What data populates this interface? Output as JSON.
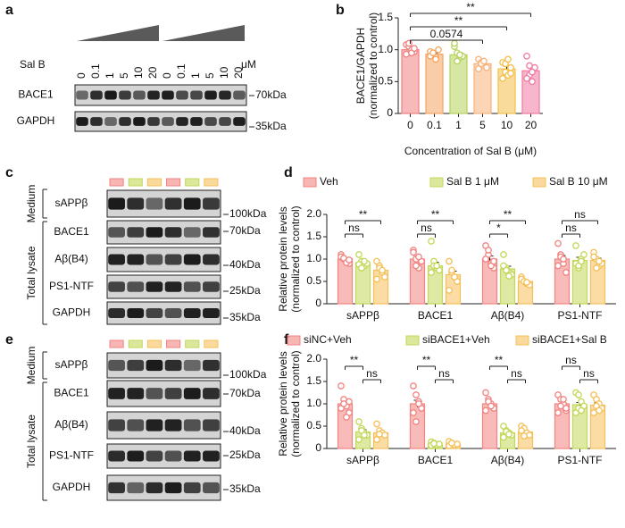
{
  "blots": [
    {
      "panel": "a",
      "treatment": "Sal B",
      "doses": [
        "0",
        "0.1",
        "1",
        "5",
        "10",
        "20",
        "0",
        "0.1",
        "1",
        "5",
        "10",
        "20"
      ],
      "dose_unit": "μM",
      "rows": [
        {
          "label": "BACE1",
          "marker": "70kDa"
        },
        {
          "label": "GAPDH",
          "marker": "35kDa"
        }
      ]
    },
    {
      "panel": "c",
      "fractions": [
        {
          "label": "Medium",
          "proteins": [
            {
              "label": "sAPPβ",
              "marker": "100kDa"
            }
          ]
        },
        {
          "label": "Total lysate",
          "proteins": [
            {
              "label": "BACE1",
              "marker": "70kDa"
            },
            {
              "label": "Aβ(B4)",
              "marker": "40kDa"
            },
            {
              "label": "PS1-NTF",
              "marker": "25kDa"
            },
            {
              "label": "GAPDH",
              "marker": "35kDa"
            }
          ]
        }
      ]
    },
    {
      "panel": "e",
      "fractions": [
        {
          "label": "Medium",
          "proteins": [
            {
              "label": "sAPPβ",
              "marker": "100kDa"
            }
          ]
        },
        {
          "label": "Total lysate",
          "proteins": [
            {
              "label": "BACE1",
              "marker": "70kDa"
            },
            {
              "label": "Aβ(B4)",
              "marker": "40kDa"
            },
            {
              "label": "PS1-NTF",
              "marker": "25kDa"
            },
            {
              "label": "GAPDH",
              "marker": "35kDa"
            }
          ]
        }
      ]
    }
  ],
  "chart_data": [
    {
      "panel": "b",
      "type": "bar",
      "ylabel": [
        "BACE1/GAPDH",
        "(normalized to control)"
      ],
      "xlabel": "Concentration of Sal B (μM)",
      "categories": [
        "0",
        "0.1",
        "1",
        "5",
        "10",
        "20"
      ],
      "values": [
        1.0,
        0.93,
        0.92,
        0.78,
        0.7,
        0.67
      ],
      "errors": [
        0.02,
        0.02,
        0.04,
        0.02,
        0.04,
        0.05
      ],
      "points": [
        [
          1.08,
          1.05,
          1.0,
          0.97,
          0.93,
          1.1,
          0.95,
          1.02
        ],
        [
          0.97,
          0.92,
          0.88,
          1.0,
          0.9,
          0.95,
          0.85
        ],
        [
          1.05,
          0.95,
          0.88,
          0.9,
          1.1,
          0.82,
          0.92
        ],
        [
          0.85,
          0.8,
          0.75,
          0.72,
          0.7,
          0.78,
          0.82
        ],
        [
          0.8,
          0.65,
          0.6,
          0.72,
          0.55,
          0.78,
          0.85,
          0.63
        ],
        [
          0.9,
          0.6,
          0.5,
          0.72,
          0.55,
          0.75,
          0.65
        ]
      ],
      "colors": [
        "#f08080",
        "#f4a460",
        "#b5d35a",
        "#f7b27a",
        "#f4c04a",
        "#f07aa0"
      ],
      "ylim": [
        0,
        1.5
      ],
      "yticks": [
        0,
        0.5,
        {
          "value": 1,
          "label": "1.0"
        },
        1.5
      ],
      "brackets": [
        {
          "label": "**",
          "between": [
            0,
            5
          ]
        },
        {
          "label": "**",
          "between": [
            0,
            4
          ]
        },
        {
          "label": "0.0574",
          "between": [
            0,
            3
          ]
        }
      ]
    },
    {
      "panel": "d",
      "type": "grouped_bar",
      "ylabel": [
        "Relative protein levels",
        "(normalized to control)"
      ],
      "categories": [
        "sAPPβ",
        "BACE1",
        "Aβ(B4)",
        "PS1-NTF"
      ],
      "series": [
        {
          "name": "Veh",
          "color": "#f28482",
          "values": [
            1.0,
            1.0,
            1.0,
            1.0
          ],
          "errors": [
            0.03,
            0.06,
            0.07,
            0.08
          ],
          "points": [
            [
              1.1,
              1.0,
              0.95,
              0.9,
              1.05,
              1.02,
              0.92,
              0.98
            ],
            [
              1.2,
              1.0,
              0.8,
              0.95,
              1.15,
              0.85,
              1.05
            ],
            [
              1.3,
              1.1,
              0.9,
              0.8,
              1.0,
              1.2,
              0.85,
              0.95
            ],
            [
              1.35,
              1.1,
              0.9,
              0.7,
              0.85,
              1.05,
              1.0
            ]
          ]
        },
        {
          "name": "Sal B 1 μM",
          "color": "#c3d85a",
          "values": [
            0.92,
            0.85,
            0.78,
            0.97
          ],
          "errors": [
            0.04,
            0.08,
            0.06,
            0.07
          ],
          "points": [
            [
              1.1,
              0.95,
              0.85,
              0.9,
              0.88,
              0.8,
              0.95
            ],
            [
              1.4,
              0.95,
              0.8,
              0.75,
              0.7,
              0.85,
              0.85
            ],
            [
              1.1,
              0.8,
              0.7,
              0.65,
              0.85,
              0.75,
              0.62
            ],
            [
              1.3,
              0.8,
              1.0,
              1.1,
              0.9,
              0.85,
              0.95
            ]
          ]
        },
        {
          "name": "Sal B 10 μM",
          "color": "#f5c05a",
          "values": [
            0.75,
            0.65,
            0.5,
            0.97
          ],
          "errors": [
            0.05,
            0.08,
            0.03,
            0.05
          ],
          "points": [
            [
              0.95,
              0.85,
              0.7,
              0.6,
              0.55,
              0.8,
              0.75
            ],
            [
              0.95,
              0.7,
              0.6,
              0.5,
              0.3,
              0.75,
              0.6
            ],
            [
              0.6,
              0.5,
              0.45,
              0.42,
              0.55,
              0.5,
              0.48
            ],
            [
              1.15,
              1.0,
              0.85,
              0.9,
              1.05,
              0.8,
              0.95
            ]
          ]
        }
      ],
      "ylim": [
        0,
        2
      ],
      "yticks": [
        0,
        0.5,
        {
          "value": 1,
          "label": "1.0"
        },
        1.5,
        {
          "value": 2,
          "label": "2.0"
        }
      ],
      "brackets": [
        {
          "category": 0,
          "between": [
            0,
            2
          ],
          "label": "**"
        },
        {
          "category": 0,
          "between": [
            0,
            1
          ],
          "label": "ns"
        },
        {
          "category": 1,
          "between": [
            0,
            2
          ],
          "label": "**"
        },
        {
          "category": 1,
          "between": [
            0,
            1
          ],
          "label": "ns"
        },
        {
          "category": 2,
          "between": [
            0,
            2
          ],
          "label": "**"
        },
        {
          "category": 2,
          "between": [
            0,
            1
          ],
          "label": "*"
        },
        {
          "category": 3,
          "between": [
            0,
            2
          ],
          "label": "ns"
        },
        {
          "category": 3,
          "between": [
            0,
            1
          ],
          "label": "ns"
        }
      ]
    },
    {
      "panel": "f",
      "type": "grouped_bar",
      "ylabel": [
        "Relative protein levels",
        "(normalized to control)"
      ],
      "categories": [
        "sAPPβ",
        "BACE1",
        "Aβ(B4)",
        "PS1-NTF"
      ],
      "series": [
        {
          "name": "siNC+Veh",
          "color": "#f28482",
          "values": [
            1.0,
            1.0,
            1.0,
            1.0
          ],
          "errors": [
            0.07,
            0.08,
            0.04,
            0.05
          ],
          "points": [
            [
              1.4,
              1.1,
              0.95,
              0.8,
              0.9,
              1.0,
              0.7,
              1.05
            ],
            [
              1.4,
              1.2,
              1.05,
              0.9,
              0.8,
              0.6,
              1.0
            ],
            [
              1.25,
              1.1,
              1.0,
              0.9,
              0.85,
              1.05,
              0.95
            ],
            [
              1.2,
              1.1,
              1.0,
              0.85,
              0.8,
              0.95,
              1.1,
              0.9
            ]
          ]
        },
        {
          "name": "siBACE1+Veh",
          "color": "#c3d85a",
          "values": [
            0.37,
            0.1,
            0.35,
            0.98
          ],
          "errors": [
            0.05,
            0.01,
            0.03,
            0.05
          ],
          "points": [
            [
              0.6,
              0.45,
              0.35,
              0.3,
              0.2,
              0.4,
              0.3
            ],
            [
              0.15,
              0.12,
              0.08,
              0.1,
              0.07,
              0.11
            ],
            [
              0.5,
              0.4,
              0.35,
              0.3,
              0.25,
              0.38,
              0.32
            ],
            [
              1.25,
              1.2,
              1.05,
              0.95,
              0.8,
              0.9,
              0.85
            ]
          ]
        },
        {
          "name": "siBACE1+Sal B",
          "color": "#f5c05a",
          "values": [
            0.35,
            0.1,
            0.37,
            0.97
          ],
          "errors": [
            0.04,
            0.01,
            0.03,
            0.05
          ],
          "points": [
            [
              0.55,
              0.4,
              0.35,
              0.3,
              0.2,
              0.32
            ],
            [
              0.16,
              0.12,
              0.08,
              0.1,
              0.06,
              0.12
            ],
            [
              0.5,
              0.45,
              0.35,
              0.3,
              0.4,
              0.28
            ],
            [
              1.2,
              1.1,
              1.0,
              0.9,
              0.8,
              0.95,
              0.85
            ]
          ]
        }
      ],
      "ylim": [
        0,
        2
      ],
      "yticks": [
        0,
        0.5,
        {
          "value": 1,
          "label": "1.0"
        },
        1.5,
        {
          "value": 2,
          "label": "2.0"
        }
      ],
      "brackets": [
        {
          "category": 0,
          "between": [
            0,
            1
          ],
          "label": "**"
        },
        {
          "category": 0,
          "between": [
            1,
            2
          ],
          "label": "ns"
        },
        {
          "category": 1,
          "between": [
            0,
            1
          ],
          "label": "**"
        },
        {
          "category": 1,
          "between": [
            1,
            2
          ],
          "label": "ns"
        },
        {
          "category": 2,
          "between": [
            0,
            1
          ],
          "label": "**"
        },
        {
          "category": 2,
          "between": [
            1,
            2
          ],
          "label": "ns"
        },
        {
          "category": 3,
          "between": [
            0,
            1
          ],
          "label": "ns"
        },
        {
          "category": 3,
          "between": [
            1,
            2
          ],
          "label": "ns"
        }
      ]
    }
  ]
}
